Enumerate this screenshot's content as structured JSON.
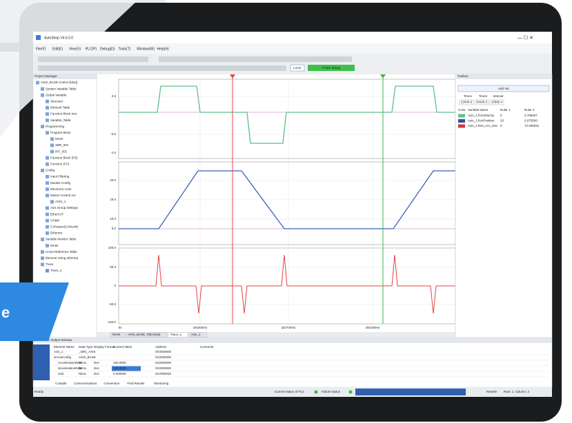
{
  "window": {
    "title": "AutoShop V4.6.0.0",
    "menu": [
      "File(F)",
      "Edit(E)",
      "View(V)",
      "PLC(P)",
      "Debug(D)",
      "Tools(T)",
      "Window(W)",
      "Help(H)"
    ],
    "toolbar_local": "Local",
    "toolbar_state": "PTMS debug"
  },
  "project_manager": {
    "title": "Project Manager",
    "tree": [
      {
        "label": "AXIS_BASE Control [H5U]",
        "level": 0
      },
      {
        "label": "System Variable Table",
        "level": 1
      },
      {
        "label": "Global Variable",
        "level": 1
      },
      {
        "label": "Structure",
        "level": 2
      },
      {
        "label": "Element Table",
        "level": 2
      },
      {
        "label": "Function Block Inst",
        "level": 2
      },
      {
        "label": "Variable_Table",
        "level": 2
      },
      {
        "label": "Programming",
        "level": 1
      },
      {
        "label": "Program Block",
        "level": 2
      },
      {
        "label": "MAIN",
        "level": 3
      },
      {
        "label": "SBR_001",
        "level": 3
      },
      {
        "label": "INT_001",
        "level": 3
      },
      {
        "label": "Function Block (FB)",
        "level": 2
      },
      {
        "label": "Function (FC)",
        "level": 2
      },
      {
        "label": "Config",
        "level": 1
      },
      {
        "label": "Input Filtering",
        "level": 2
      },
      {
        "label": "Module Config",
        "level": 2
      },
      {
        "label": "Electronic Cam",
        "level": 2
      },
      {
        "label": "Motion Control Axi",
        "level": 2
      },
      {
        "label": "AXIS_1",
        "level": 3
      },
      {
        "label": "Axis Group Settings",
        "level": 2
      },
      {
        "label": "EtherCAT",
        "level": 2
      },
      {
        "label": "COM0",
        "level": 2
      },
      {
        "label": "CANopen(CANLink)",
        "level": 2
      },
      {
        "label": "Ethernet",
        "level": 2
      },
      {
        "label": "Variable Monitor Table",
        "level": 1
      },
      {
        "label": "MAIN",
        "level": 2
      },
      {
        "label": "Cross Reference Table",
        "level": 1
      },
      {
        "label": "Element Using Informat",
        "level": 1
      },
      {
        "label": "Trace",
        "level": 1
      },
      {
        "label": "Trace_1",
        "level": 2
      }
    ]
  },
  "trace": {
    "panel1_labels": [
      "0.5",
      "-0.5",
      "-1.0"
    ],
    "panel2_labels": [
      "20.0",
      "15.0",
      "10.0",
      "5.0"
    ],
    "panel3_labels": [
      "100.0",
      "50.0",
      "0",
      "-50.0",
      "-100.0"
    ],
    "x_labels": [
      "0s",
      "16s200ms",
      "32s700ms",
      "49s150ms"
    ],
    "tabs": [
      "MAIN",
      "AXIS_BASE_FB(Axis0)",
      "Trace_1",
      "Axis_1"
    ]
  },
  "toolbox": {
    "title": "Toolbox",
    "button": "Add Var",
    "time_headers": [
      "Time1",
      "Time2",
      "Interval"
    ],
    "times": [
      "22846.9",
      "33426.3",
      "10580.4"
    ],
    "columns": [
      "Color",
      "Variable Name",
      "Ruler 1",
      "Ruler 2"
    ],
    "rows": [
      {
        "color": "#6abf8a",
        "cells": [
          "Axis_1.fActVelocity",
          "0",
          "0.798467"
        ]
      },
      {
        "color": "#2e4fa0",
        "cells": [
          "Axis_1.fActPosition",
          "20",
          "0.975583"
        ]
      },
      {
        "color": "#d33a3a",
        "cells": [
          "Axis_1.fSet_Acc_Dec",
          "0",
          "72.000031"
        ]
      }
    ]
  },
  "output": {
    "title": "Information Output Window",
    "columns": [
      "Element Name",
      "Data Type",
      "Display Format",
      "Current Value",
      "Address",
      "Comment"
    ],
    "rows": [
      [
        "Axis_1",
        "_sMC_AXIS",
        "",
        "",
        "0X4000000",
        ""
      ],
      [
        "stAxisConfig",
        "AXIS_BASE",
        "",
        "",
        "0X2000000",
        ""
      ],
      [
        "AccelerationRate",
        "REAL",
        "Dec",
        "100.0000",
        "0X2000000",
        ""
      ],
      [
        "DecelerationRate",
        "REAL",
        "Dec",
        "100.0000",
        "0X2000000",
        ""
      ],
      [
        "Jerk",
        "REAL",
        "Dec",
        "0.000000",
        "0X7000040",
        ""
      ]
    ],
    "tabs": [
      "Compile",
      "Communications",
      "Conversion",
      "Find Results",
      "Monitoring"
    ]
  },
  "status": {
    "ready": "Ready",
    "plc": "Current status of PLC",
    "failure": "Failure status",
    "rewrite": "Rewrite",
    "position": "Row: 1, Column: 2"
  },
  "banner": "e"
}
